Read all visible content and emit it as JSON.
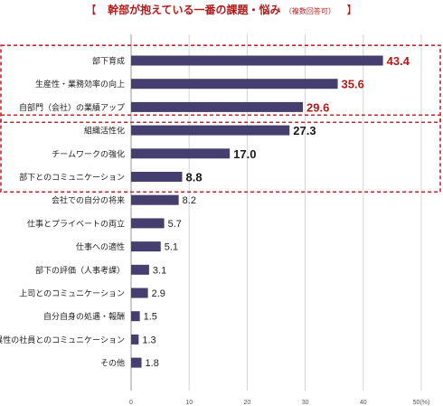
{
  "title_parts": {
    "bracket_open": "【",
    "main": "幹部が抱えている一番の課題・悩み",
    "sub": "（複数回答可）",
    "bracket_close": "】"
  },
  "chart_data": {
    "type": "bar",
    "orientation": "horizontal",
    "title": "【 幹部が抱えている一番の課題・悩み（複数回答可） 】",
    "categories": [
      "部下育成",
      "生産性・業務効率の向上",
      "自部門（会社）の業績アップ",
      "組織活性化",
      "チームワークの強化",
      "部下とのコミュニケーション",
      "会社での自分の将来",
      "仕事とプライベートの両立",
      "仕事への適性",
      "部下の評価（人事考課）",
      "上司とのコミュニケーション",
      "自分自身の処遇・報酬",
      "異性の社員とのコミュニケーション",
      "その他"
    ],
    "values": [
      43.4,
      35.6,
      29.6,
      27.3,
      17.0,
      8.8,
      8.2,
      5.7,
      5.1,
      3.1,
      2.9,
      1.5,
      1.3,
      1.8
    ],
    "value_labels": [
      "43.4",
      "35.6",
      "29.6",
      "27.3",
      "17.0",
      "8.8",
      "8.2",
      "5.7",
      "5.1",
      "3.1",
      "2.9",
      "1.5",
      "1.3",
      "1.8"
    ],
    "xlim": [
      0,
      50
    ],
    "xticks": [
      "0",
      "10",
      "20",
      "30",
      "40",
      "50(%)"
    ],
    "grid": true,
    "highlight_groups": [
      {
        "from": 0,
        "to": 2,
        "label_color": "#b01c1c",
        "border_color": "#c0282d"
      },
      {
        "from": 3,
        "to": 5,
        "label_color": "#1a1a1a",
        "border_color": "#c0282d"
      }
    ],
    "colors": {
      "bar": "#443f6e",
      "title_accent": "#b01c1c",
      "top_group_value": "#b01c1c",
      "text": "#222222",
      "grid": "#d6d6d6",
      "axis": "#9a9a9a",
      "box": "#c0282d"
    }
  }
}
